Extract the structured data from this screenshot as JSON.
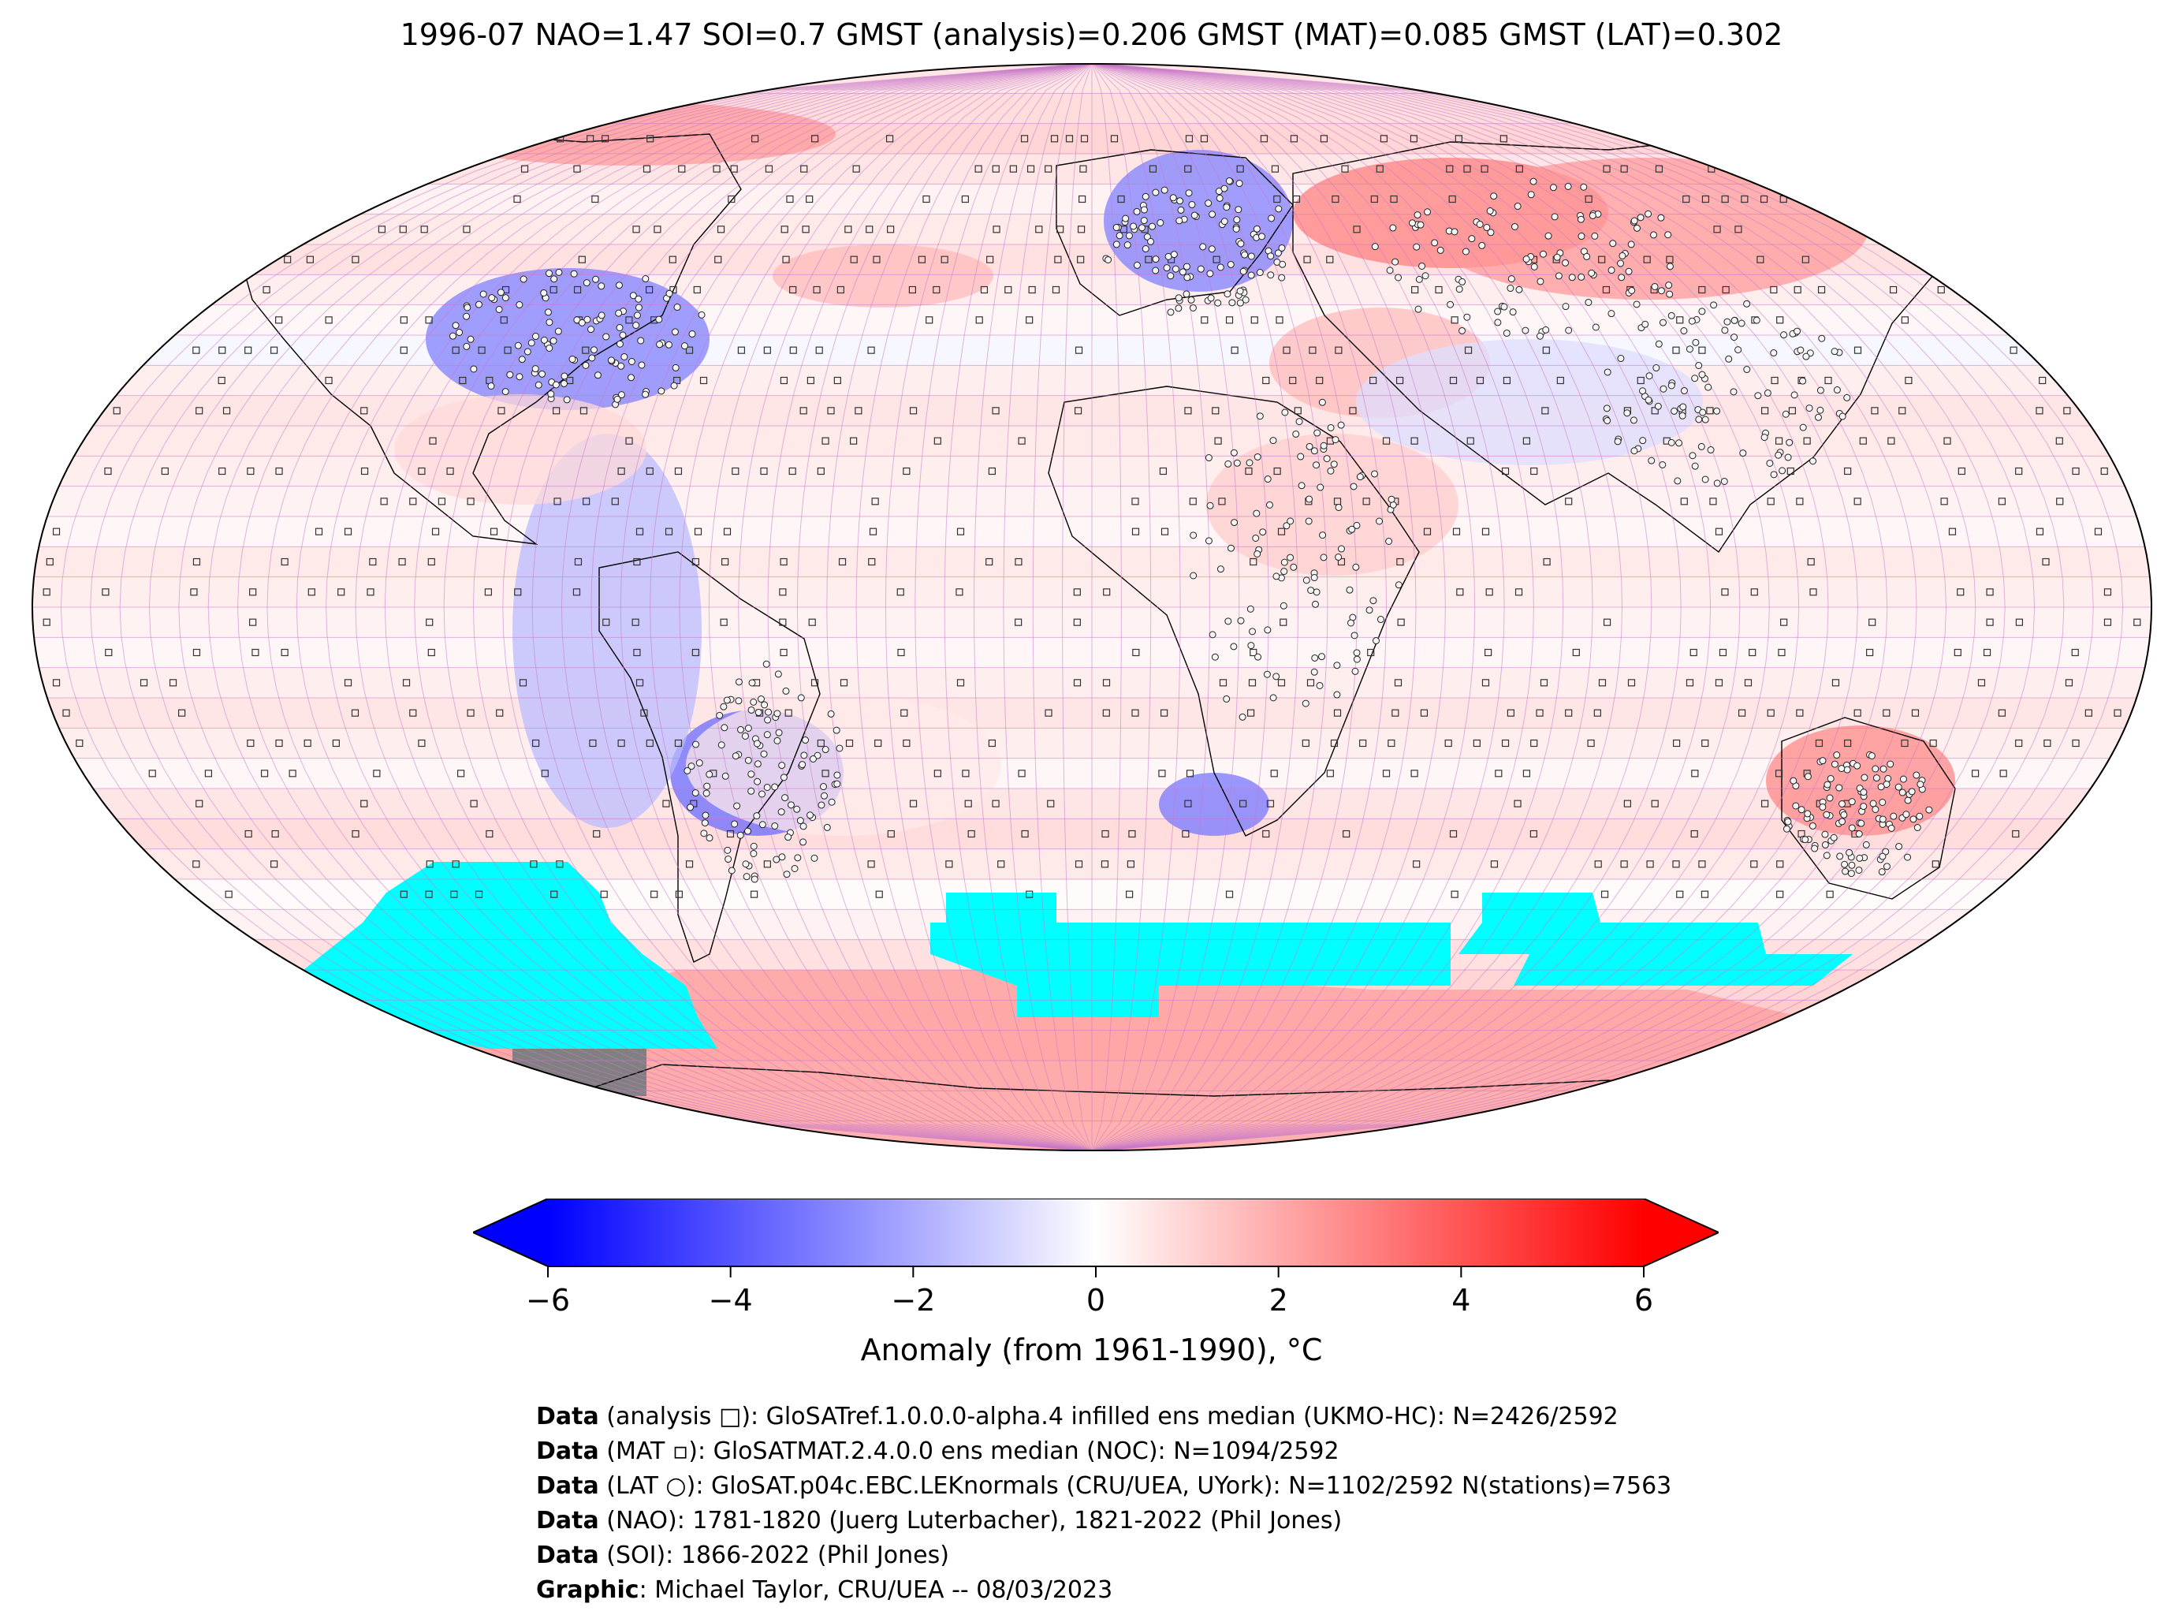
{
  "title": "1996-07 NAO=1.47 SOI=0.7 GMST (analysis)=0.206 GMST (MAT)=0.085 GMST (LAT)=0.302",
  "colorbar": {
    "label": "Anomaly (from 1961-1990), °C",
    "ticks": [
      "−6",
      "−4",
      "−2",
      "0",
      "2",
      "4",
      "6"
    ],
    "range": [
      -6,
      6
    ],
    "colors": {
      "low": "#0000ff",
      "mid": "#ffffff",
      "high": "#ff0000"
    }
  },
  "map": {
    "projection": "robinson",
    "colors": {
      "no_data": "#00ffff",
      "masked": "#808080",
      "grid": "#c878c8",
      "coast": "#000000"
    }
  },
  "credits": [
    {
      "key": "Data",
      "text": " (analysis □): GloSATref.1.0.0.0-alpha.4 infilled ens median (UKMO-HC): N=2426/2592"
    },
    {
      "key": "Data",
      "text": " (MAT ▫): GloSATMAT.2.4.0.0 ens median (NOC): N=1094/2592"
    },
    {
      "key": "Data",
      "text": " (LAT ○): GloSAT.p04c.EBC.LEKnormals (CRU/UEA, UYork): N=1102/2592 N(stations)=7563"
    },
    {
      "key": "Data",
      "text": " (NAO): 1781-1820 (Juerg Luterbacher), 1821-2022 (Phil Jones)"
    },
    {
      "key": "Data",
      "text": " (SOI): 1866-2022 (Phil Jones)"
    },
    {
      "key": "Graphic",
      "text": ": Michael Taylor, CRU/UEA -- 08/03/2023"
    }
  ]
}
